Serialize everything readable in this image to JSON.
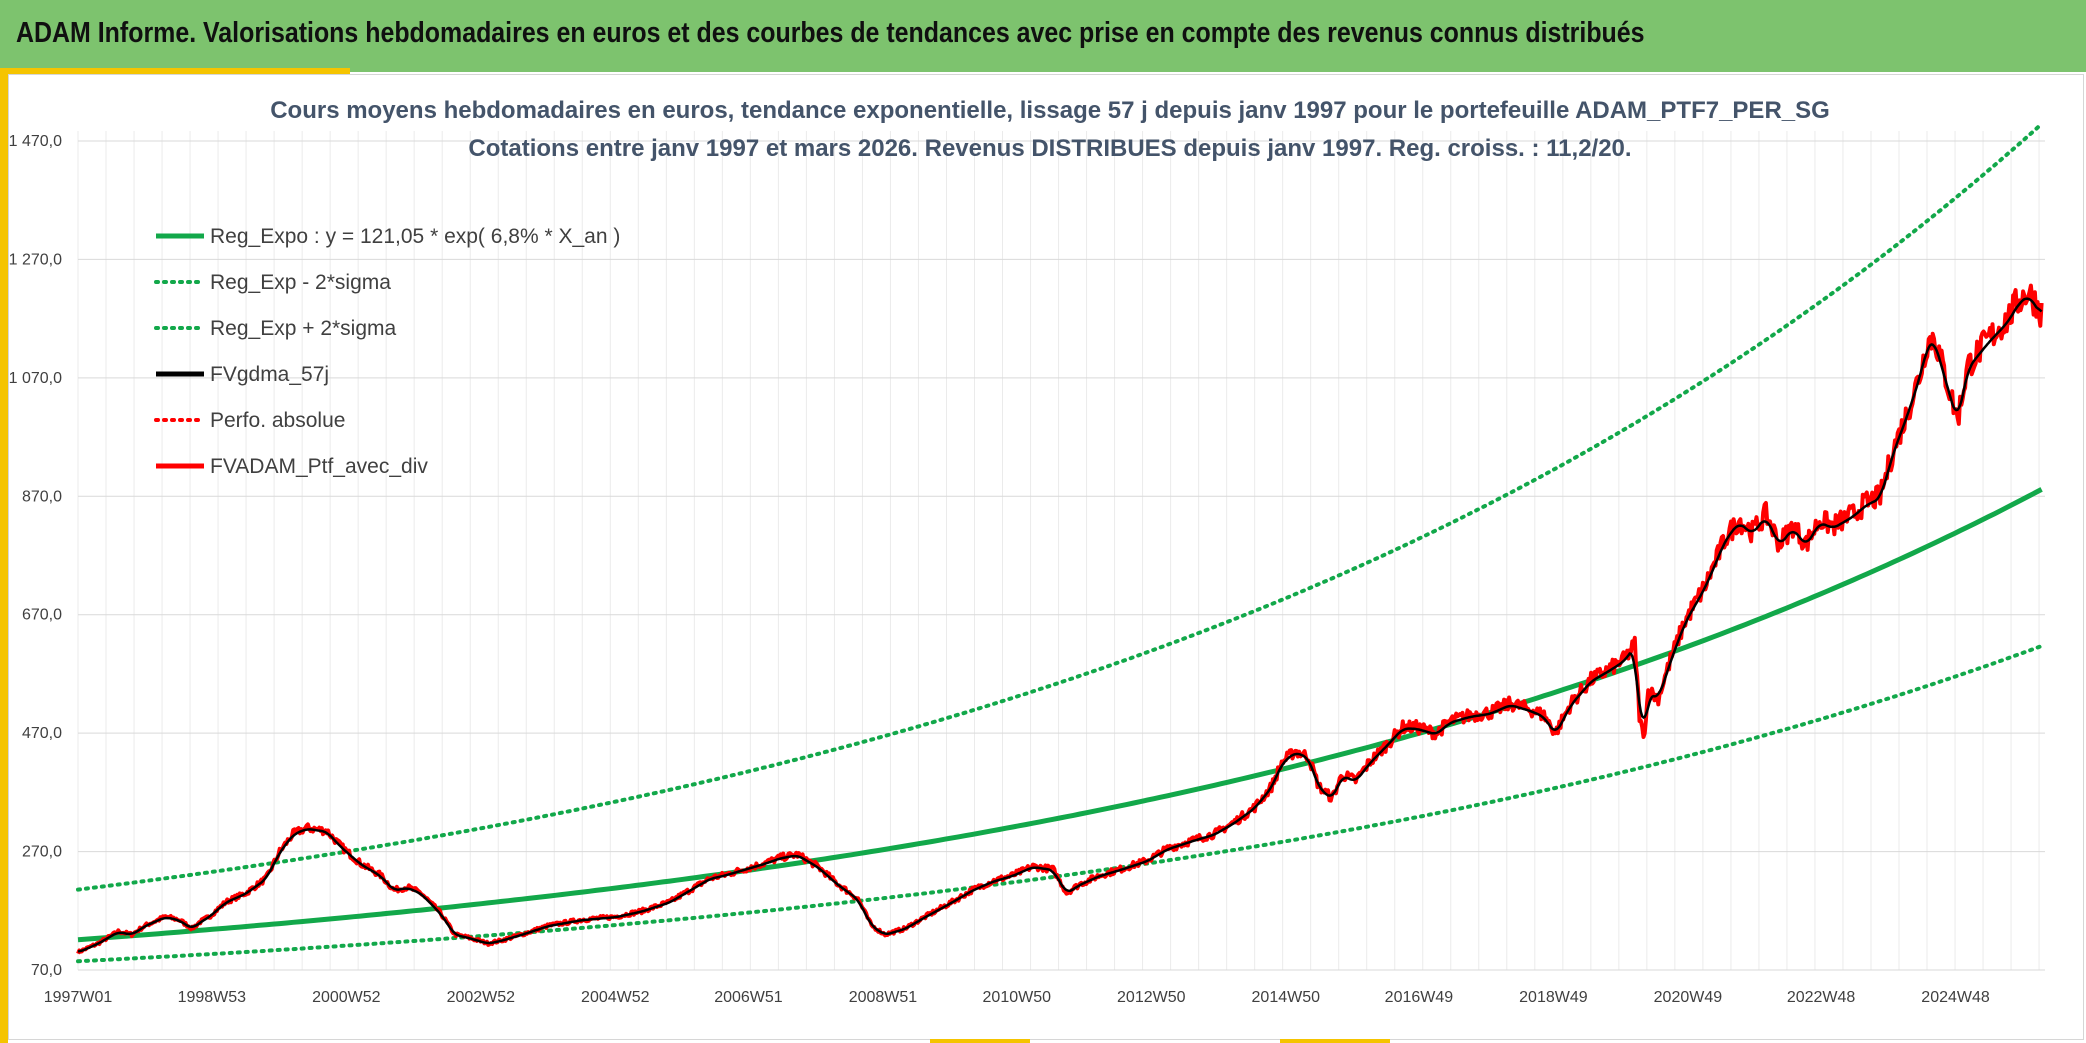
{
  "header": {
    "title": "ADAM Informe. Valorisations hebdomadaires en euros et des courbes de tendances avec prise en compte des revenus connus distribués"
  },
  "colors": {
    "banner": "#7dc36e",
    "accent": "#f5c400",
    "green": "#12a84a",
    "black": "#000000",
    "red": "#ff0000"
  },
  "chart_data": {
    "type": "line",
    "title": [
      "Cours moyens hebdomadaires en euros, tendance exponentielle, lissage 57 j depuis janv 1997 pour le portefeuille ADAM_PTF7_PER_SG",
      "Cotations entre janv 1997 et mars 2026. Revenus DISTRIBUES depuis janv 1997. Reg. croiss. : 11,2/20."
    ],
    "ylim": [
      70,
      1470
    ],
    "y_ticks": [
      70,
      270,
      470,
      670,
      870,
      1070,
      1270,
      1470
    ],
    "y_tick_labels": [
      "70,0",
      "270,0",
      "470,0",
      "670,0",
      "870,0",
      "1 070,0",
      "1 270,0",
      "1 470,0"
    ],
    "xlim": [
      1997.0,
      2026.25
    ],
    "x_ticks": [
      1997.0,
      1998.99,
      2000.99,
      2002.99,
      2004.99,
      2006.97,
      2008.97,
      2010.96,
      2012.96,
      2014.96,
      2016.94,
      2018.94,
      2020.94,
      2022.92,
      2024.92
    ],
    "x_tick_labels": [
      "1997W01",
      "1998W53",
      "2000W52",
      "2002W52",
      "2004W52",
      "2006W51",
      "2008W51",
      "2010W50",
      "2012W50",
      "2014W50",
      "2016W49",
      "2018W49",
      "2020W49",
      "2022W48",
      "2024W48"
    ],
    "legend": [
      {
        "label": "Reg_Expo : y = 121,05 * exp( 6,8% *  X_an )",
        "color": "#12a84a",
        "style": "solid"
      },
      {
        "label": "Reg_Exp - 2*sigma",
        "color": "#12a84a",
        "style": "dotted"
      },
      {
        "label": "Reg_Exp + 2*sigma",
        "color": "#12a84a",
        "style": "dotted"
      },
      {
        "label": "FVgdma_57j",
        "color": "#000000",
        "style": "solid"
      },
      {
        "label": "Perfo. absolue",
        "color": "#ff0000",
        "style": "dotted"
      },
      {
        "label": "FVADAM_Ptf_avec_div",
        "color": "#ff0000",
        "style": "solid"
      }
    ],
    "regression": {
      "a": 121.05,
      "b": 0.068,
      "lower_factor": 0.7,
      "upper_factor": 1.7
    },
    "series": [
      {
        "name": "FVADAM_Ptf_avec_div",
        "x": [
          1997.0,
          1997.3,
          1997.6,
          1997.8,
          1998.0,
          1998.3,
          1998.5,
          1998.7,
          1998.8,
          1998.95,
          1999.2,
          1999.5,
          1999.8,
          2000.0,
          2000.2,
          2000.4,
          2000.7,
          2000.9,
          2001.2,
          2001.5,
          2001.7,
          2001.9,
          2002.1,
          2002.4,
          2002.6,
          2002.8,
          2003.1,
          2003.3,
          2003.6,
          2004.0,
          2004.5,
          2005.0,
          2005.4,
          2005.8,
          2006.1,
          2006.4,
          2006.6,
          2006.9,
          2007.2,
          2007.45,
          2007.7,
          2008.0,
          2008.3,
          2008.6,
          2008.8,
          2009.0,
          2009.3,
          2009.6,
          2010.0,
          2010.3,
          2010.6,
          2010.9,
          2011.2,
          2011.5,
          2011.7,
          2011.9,
          2012.2,
          2012.5,
          2012.9,
          2013.2,
          2013.6,
          2013.9,
          2014.2,
          2014.5,
          2014.75,
          2014.9,
          2015.1,
          2015.3,
          2015.45,
          2015.65,
          2015.8,
          2016.0,
          2016.2,
          2016.5,
          2016.7,
          2016.9,
          2017.2,
          2017.4,
          2017.7,
          2018.0,
          2018.3,
          2018.6,
          2018.8,
          2018.97,
          2019.2,
          2019.5,
          2019.8,
          2020.0,
          2020.15,
          2020.22,
          2020.28,
          2020.35,
          2020.5,
          2020.7,
          2020.9,
          2021.2,
          2021.5,
          2021.7,
          2021.9,
          2022.1,
          2022.3,
          2022.5,
          2022.7,
          2022.9,
          2023.1,
          2023.4,
          2023.6,
          2023.8,
          2024.0,
          2024.2,
          2024.4,
          2024.5,
          2024.6,
          2024.75,
          2024.95,
          2025.1,
          2025.3,
          2025.45,
          2025.7,
          2025.85,
          2026.0,
          2026.1,
          2026.2
        ],
        "values": [
          100,
          115,
          135,
          130,
          145,
          160,
          155,
          140,
          150,
          160,
          185,
          200,
          225,
          270,
          300,
          310,
          305,
          280,
          250,
          230,
          205,
          210,
          200,
          165,
          130,
          125,
          115,
          120,
          130,
          145,
          155,
          160,
          170,
          185,
          205,
          225,
          230,
          240,
          250,
          260,
          265,
          245,
          215,
          190,
          145,
          130,
          140,
          160,
          185,
          205,
          220,
          230,
          245,
          240,
          200,
          215,
          230,
          240,
          255,
          275,
          290,
          300,
          320,
          345,
          380,
          420,
          440,
          430,
          380,
          360,
          400,
          390,
          420,
          455,
          480,
          480,
          470,
          490,
          500,
          505,
          520,
          510,
          500,
          470,
          520,
          560,
          580,
          595,
          620,
          500,
          460,
          540,
          530,
          600,
          660,
          720,
          800,
          830,
          810,
          840,
          790,
          820,
          790,
          830,
          820,
          840,
          860,
          870,
          950,
          1010,
          1080,
          1130,
          1140,
          1080,
          1000,
          1090,
          1120,
          1140,
          1170,
          1200,
          1215,
          1200,
          1180
        ]
      }
    ],
    "smoothed_series": "FVgdma_57j"
  }
}
